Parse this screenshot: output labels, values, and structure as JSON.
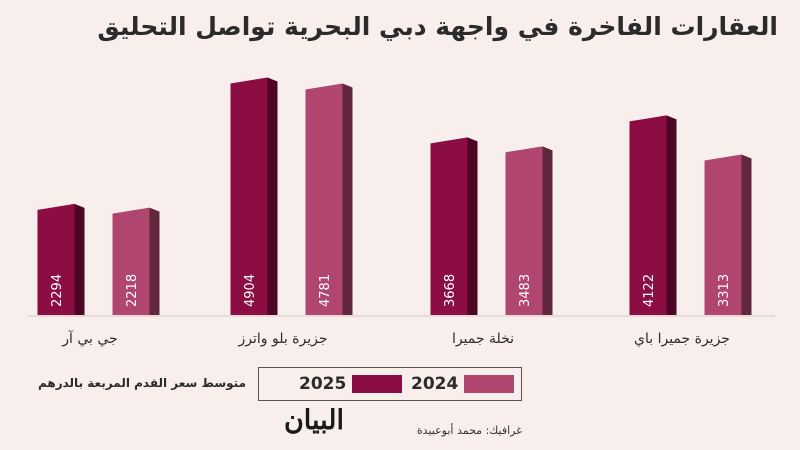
{
  "title": "العقارات الفاخرة في واجهة دبي البحرية تواصل التحليق",
  "chart_data": {
    "type": "bar",
    "categories": [
      "جي بي آر",
      "جزيرة بلو واترز",
      "نخلة جميرا",
      "جزيرة جميرا باي"
    ],
    "series": [
      {
        "name": "2025",
        "values": [
          2294,
          4904,
          3668,
          4122
        ]
      },
      {
        "name": "2024",
        "values": [
          2218,
          4781,
          3483,
          3313
        ]
      }
    ],
    "ylim": [
      0,
      5100
    ],
    "colors": {
      "2025": "#8b0d44",
      "2024": "#b0466f"
    },
    "grid": false,
    "legend_caption": "متوسط سعر القدم المربعة بالدرهم"
  },
  "legend": [
    {
      "label": "2025",
      "color": "#8b0d44"
    },
    {
      "label": "2024",
      "color": "#b0466f"
    }
  ],
  "credit": "غرافيك: محمد أبوعبيدة",
  "logo": "البيان"
}
